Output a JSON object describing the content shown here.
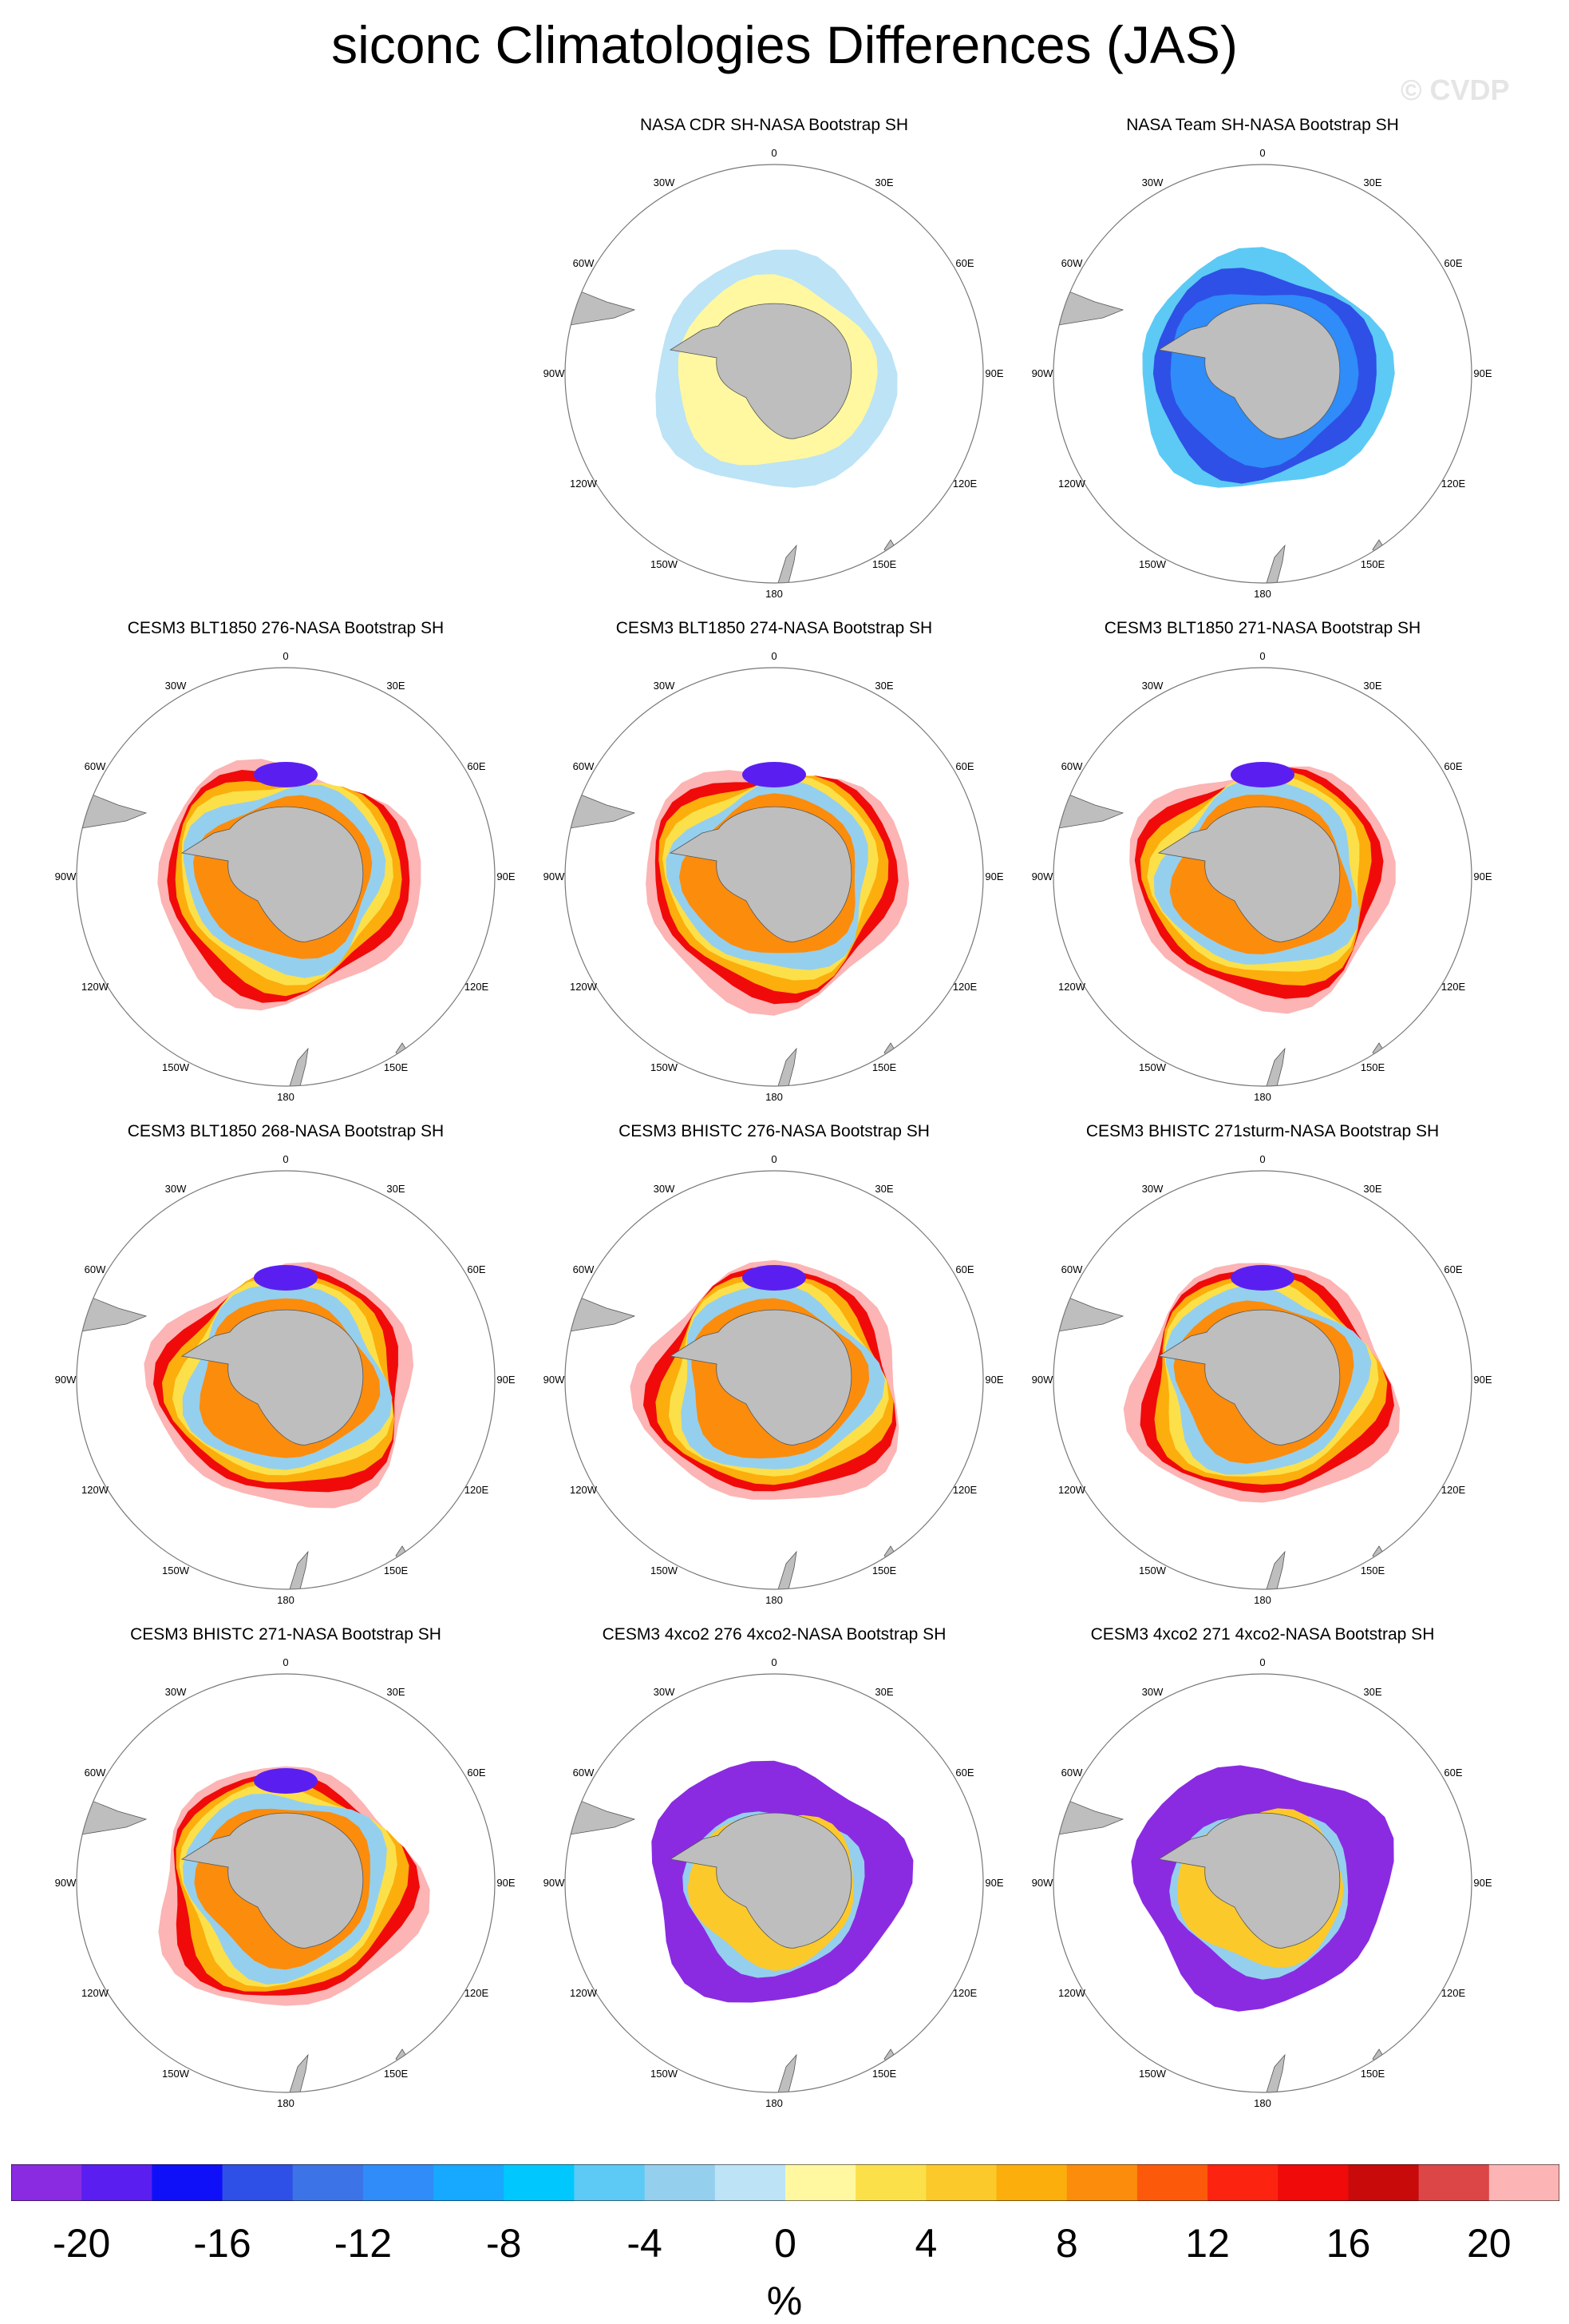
{
  "title": "siconc Climatologies Differences (JAS)",
  "watermark": "© CVDP",
  "lon_labels": [
    "0",
    "30E",
    "60E",
    "90E",
    "120E",
    "150E",
    "180",
    "150W",
    "120W",
    "90W",
    "60W",
    "30W"
  ],
  "panels": [
    {
      "title": "NASA CDR SH-NASA Bootstrap SH",
      "pattern": "cdr"
    },
    {
      "title": "NASA Team SH-NASA Bootstrap SH",
      "pattern": "team"
    },
    {
      "title": "CESM3 BLT1850 276-NASA Bootstrap SH",
      "pattern": "model"
    },
    {
      "title": "CESM3 BLT1850 274-NASA Bootstrap SH",
      "pattern": "model"
    },
    {
      "title": "CESM3 BLT1850 271-NASA Bootstrap SH",
      "pattern": "model"
    },
    {
      "title": "CESM3 BLT1850 268-NASA Bootstrap SH",
      "pattern": "model"
    },
    {
      "title": "CESM3 BHISTC 276-NASA Bootstrap SH",
      "pattern": "model"
    },
    {
      "title": "CESM3 BHISTC 271sturm-NASA Bootstrap SH",
      "pattern": "model"
    },
    {
      "title": "CESM3 BHISTC 271-NASA Bootstrap SH",
      "pattern": "model"
    },
    {
      "title": "CESM3 4xco2 276 4xco2-NASA Bootstrap SH",
      "pattern": "co2"
    },
    {
      "title": "CESM3 4xco2 271 4xco2-NASA Bootstrap SH",
      "pattern": "co2"
    }
  ],
  "colorbar": {
    "colors": [
      "#8a2be2",
      "#5a1ff0",
      "#1010f8",
      "#2e50e6",
      "#3c74e8",
      "#2f8cf8",
      "#17a8ff",
      "#00c8ff",
      "#5ccaf5",
      "#95cfee",
      "#bce3f6",
      "#fff8a0",
      "#fce04a",
      "#fcc92a",
      "#fcae0c",
      "#fc8c0c",
      "#fc5a0a",
      "#fc2410",
      "#f00a0a",
      "#c80a0a",
      "#dc4646",
      "#fcb4b4"
    ],
    "levels": [
      "-20",
      "-16",
      "-12",
      "-8",
      "-4",
      "0",
      "4",
      "8",
      "12",
      "16",
      "20"
    ],
    "unit": "%"
  },
  "chart_data": {
    "type": "heatmap",
    "title": "siconc Climatologies Differences (JAS)",
    "variable": "siconc",
    "season": "JAS",
    "units": "%",
    "color_range": [
      -21,
      21
    ],
    "contour_interval": 2,
    "projection": "South polar stereographic",
    "panel_count": 11
  }
}
